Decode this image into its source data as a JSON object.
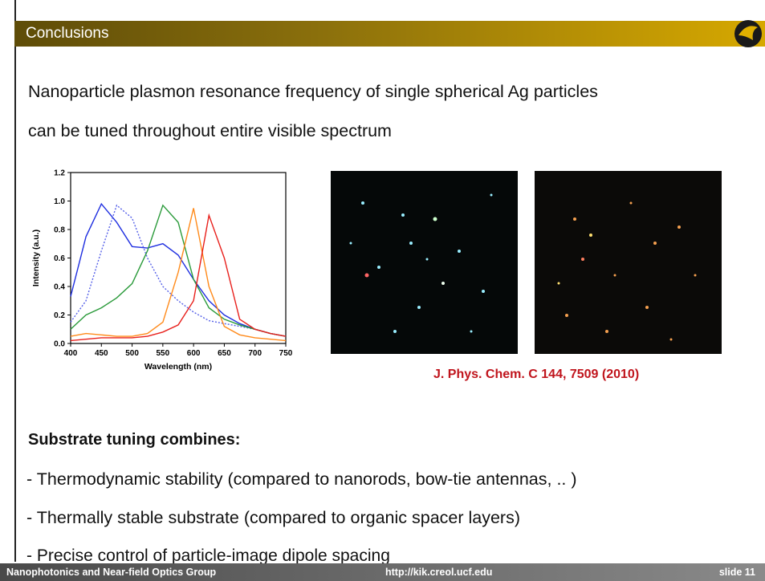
{
  "header": {
    "title": "Conclusions"
  },
  "body": {
    "text": [
      "Nanoparticle plasmon resonance frequency of single spherical Ag particles",
      "can be tuned throughout entire visible spectrum"
    ],
    "citation": "J. Phys. Chem. C 144, 7509 (2010)",
    "subheading": "Substrate tuning combines:",
    "bullets": [
      "- Thermodynamic stability  (compared to nanorods, bow-tie antennas, .. )",
      "- Thermally stable substrate (compared to organic spacer layers)",
      "- Precise control of particle-image dipole spacing"
    ]
  },
  "footer": {
    "left": "Nanophotonics and Near-field Optics Group",
    "center": "http://kik.creol.ucf.edu",
    "right": "slide 11"
  },
  "chart_data": {
    "type": "line",
    "x_label": "Wavelength (nm)",
    "y_label": "Intensity (a.u.)",
    "x": [
      400,
      425,
      450,
      475,
      500,
      525,
      550,
      575,
      600,
      625,
      650,
      675,
      700,
      725,
      750
    ],
    "series": [
      {
        "color": "#1f2fe0",
        "dashed": false,
        "values": [
          0.33,
          0.75,
          0.98,
          0.85,
          0.68,
          0.67,
          0.7,
          0.62,
          0.45,
          0.3,
          0.2,
          0.14,
          0.1,
          0.07,
          0.05
        ]
      },
      {
        "color": "#5560e8",
        "dashed": true,
        "values": [
          0.15,
          0.3,
          0.65,
          0.97,
          0.88,
          0.6,
          0.4,
          0.3,
          0.22,
          0.16,
          0.14,
          0.12,
          0.1,
          0.07,
          0.05
        ]
      },
      {
        "color": "#2a9a3a",
        "dashed": false,
        "values": [
          0.1,
          0.2,
          0.25,
          0.32,
          0.42,
          0.65,
          0.97,
          0.85,
          0.45,
          0.25,
          0.17,
          0.13,
          0.1,
          0.07,
          0.05
        ]
      },
      {
        "color": "#ff8a1a",
        "dashed": false,
        "values": [
          0.05,
          0.07,
          0.06,
          0.05,
          0.05,
          0.07,
          0.15,
          0.5,
          0.95,
          0.4,
          0.12,
          0.06,
          0.04,
          0.03,
          0.02
        ]
      },
      {
        "color": "#e8201c",
        "dashed": false,
        "values": [
          0.02,
          0.03,
          0.04,
          0.04,
          0.04,
          0.05,
          0.08,
          0.13,
          0.3,
          0.9,
          0.6,
          0.17,
          0.1,
          0.07,
          0.05
        ]
      }
    ],
    "xlim": [
      400,
      750
    ],
    "xticks": [
      400,
      450,
      500,
      550,
      600,
      650,
      700,
      750
    ],
    "ylim": [
      0,
      1.2
    ],
    "yticks": [
      {
        "value": 0,
        "label": "0.0"
      },
      0.2,
      0.4,
      0.6,
      0.8,
      {
        "value": 1,
        "label": "1.0"
      },
      1.2
    ]
  }
}
